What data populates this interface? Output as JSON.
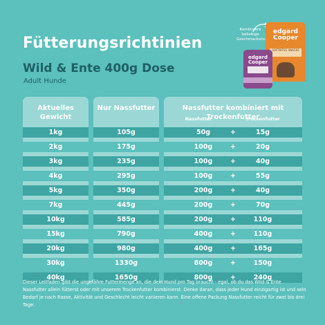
{
  "title": "Fütterungsrichtinien",
  "product": "Wild & Ente 400g Dose",
  "audience": "Adult Hunde",
  "packshot": {
    "note": "Kombiniere beliebige Geschmacksrichtungen!",
    "bag_brand": "edgard Cooper",
    "bag_label": "SOFTBITES SNACKS",
    "can_brand": "edgard Cooper"
  },
  "table": {
    "header_weight": "Aktuelles Gewicht",
    "header_wet": "Nur Nassfutter",
    "header_combined": "Nassfutter kombiniert mit Trockenfutter",
    "sub_wet": "Nassfutter",
    "sub_dry": "Trockenfutter",
    "rows": [
      {
        "weight": "1kg",
        "wet_only": "105g",
        "wet": "50g",
        "plus": "+",
        "dry": "15g"
      },
      {
        "weight": "2kg",
        "wet_only": "175g",
        "wet": "100g",
        "plus": "+",
        "dry": "20g"
      },
      {
        "weight": "3kg",
        "wet_only": "235g",
        "wet": "100g",
        "plus": "+",
        "dry": "40g"
      },
      {
        "weight": "4kg",
        "wet_only": "295g",
        "wet": "100g",
        "plus": "+",
        "dry": "55g"
      },
      {
        "weight": "5kg",
        "wet_only": "350g",
        "wet": "200g",
        "plus": "+",
        "dry": "40g"
      },
      {
        "weight": "7kg",
        "wet_only": "445g",
        "wet": "200g",
        "plus": "+",
        "dry": "70g"
      },
      {
        "weight": "10kg",
        "wet_only": "585g",
        "wet": "200g",
        "plus": "+",
        "dry": "110g"
      },
      {
        "weight": "15kg",
        "wet_only": "790g",
        "wet": "400g",
        "plus": "+",
        "dry": "110g"
      },
      {
        "weight": "20kg",
        "wet_only": "980g",
        "wet": "400g",
        "plus": "+",
        "dry": "165g"
      },
      {
        "weight": "30kg",
        "wet_only": "1330g",
        "wet": "800g",
        "plus": "+",
        "dry": "150g"
      },
      {
        "weight": "40kg",
        "wet_only": "1650g",
        "wet": "800g",
        "plus": "+",
        "dry": "240g"
      }
    ]
  },
  "footer": "Dieser Leitfaden gibt die ungefähre Futtermenge an, die dein Hund pro Tag braucht - egal, ob du das Wild & Ente Nassfutter allein fütterst oder mit unserem Trockenfutter kombinierst. Denke daran, dass jeder Hund einzigartig ist und sein Bedarf je nach Rasse, Aktivität und Geschlecht leicht variieren kann. Eine offene Packung Nassfutter reicht für zwei bis drei Tage.",
  "colors": {
    "background": "#5cc0bd",
    "panel": "#9bd8d5",
    "row_dark": "#3ea5a3",
    "heading_dark": "#1e6064"
  }
}
